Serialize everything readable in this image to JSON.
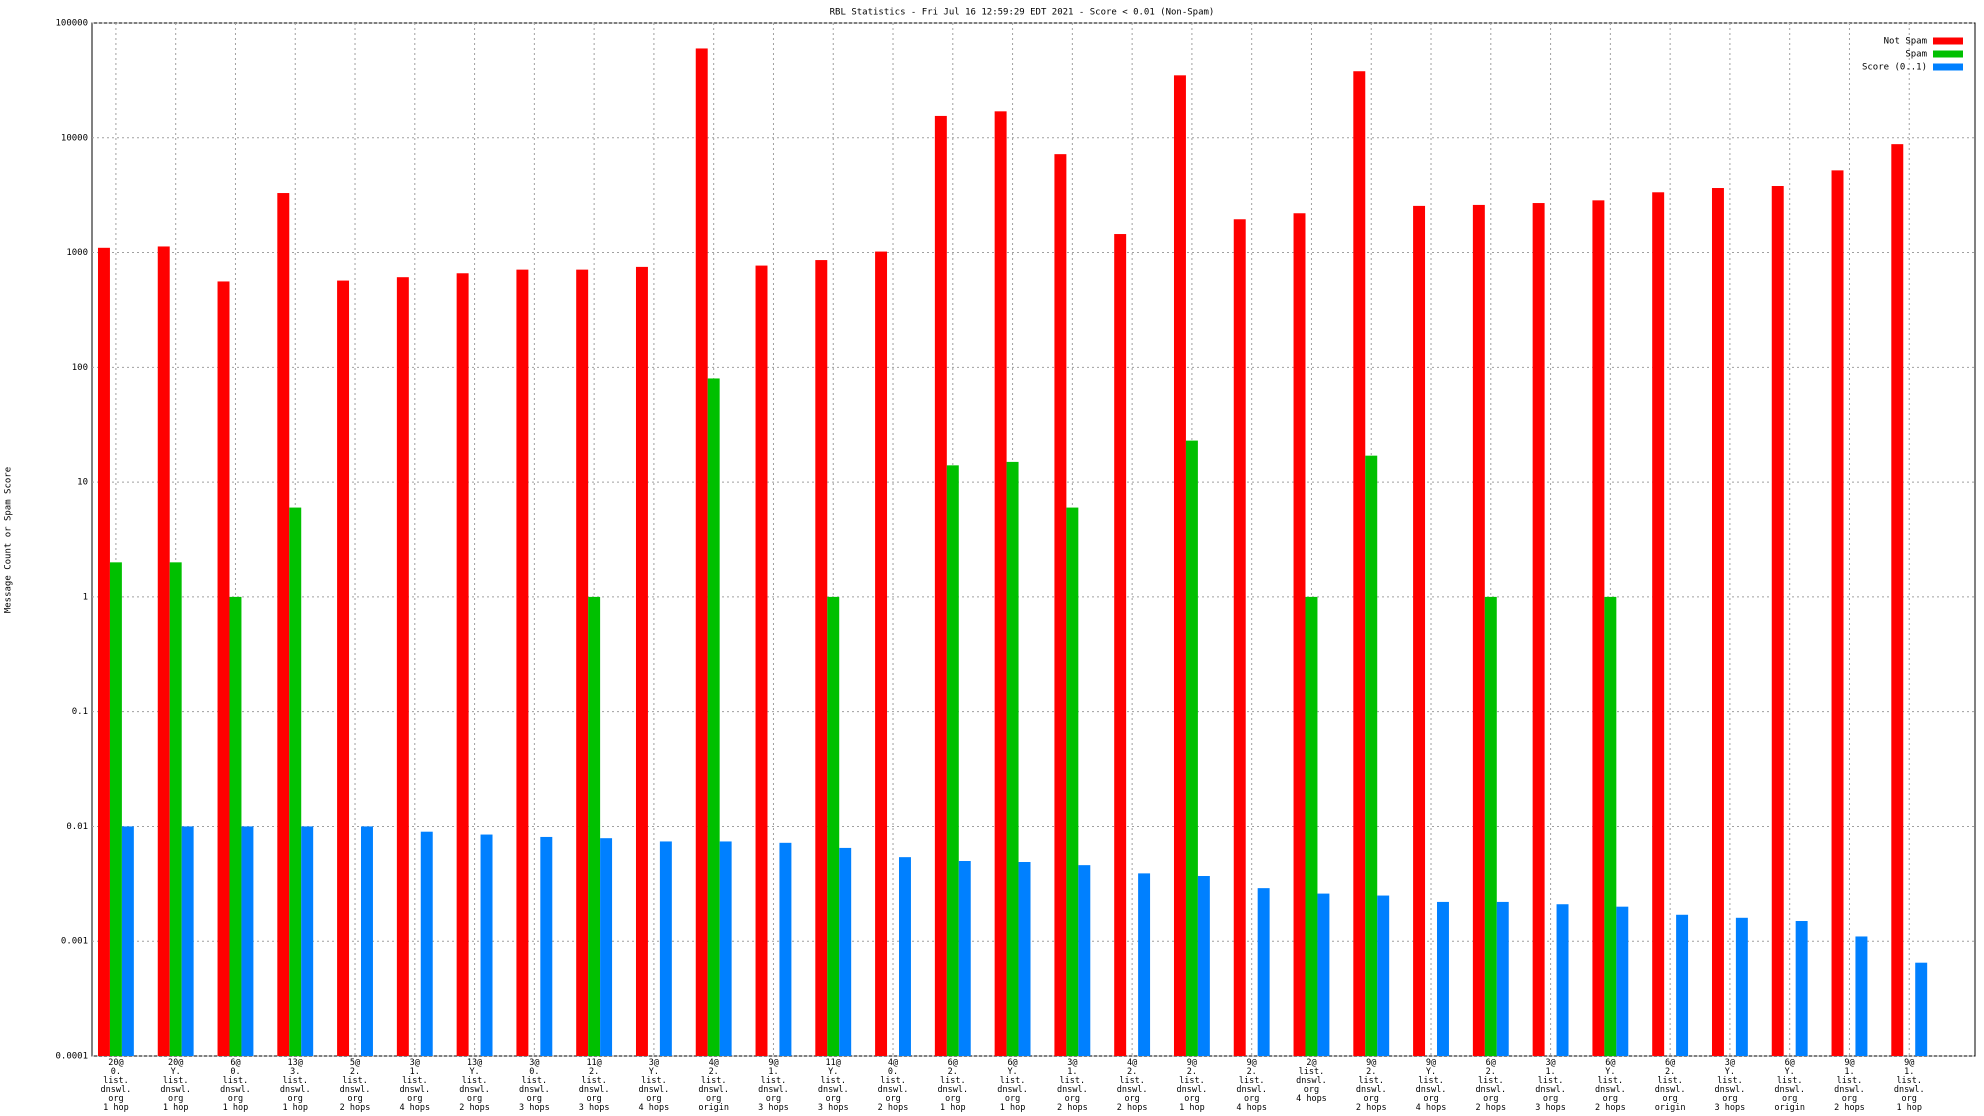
{
  "chart_data": {
    "type": "bar",
    "title": "RBL Statistics - Fri Jul 16 12:59:29 EDT 2021 - Score < 0.01 (Non-Spam)",
    "y_label": "Message Count or Spam Score",
    "log_y": true,
    "grid": true,
    "legend": "top-right",
    "categories": [
      "20@\n0.\nlist.\ndnswl.\norg\n1 hop",
      "20@\nY.\nlist.\ndnswl.\norg\n1 hop",
      "6@\n0.\nlist.\ndnswl.\norg\n1 hop",
      "13@\n3.\nlist.\ndnswl.\norg\n1 hop",
      "5@\n2.\nlist.\ndnswl.\norg\n2 hops",
      "3@\n1.\nlist.\ndnswl.\norg\n4 hops",
      "13@\nY.\nlist.\ndnswl.\norg\n2 hops",
      "3@\n0.\nlist.\ndnswl.\norg\n3 hops",
      "11@\n2.\nlist.\ndnswl.\norg\n3 hops",
      "3@\nY.\nlist.\ndnswl.\norg\n4 hops",
      "4@\n2.\nlist.\ndnswl.\norg\norigin",
      "9@\n1.\nlist.\ndnswl.\norg\n3 hops",
      "11@\nY.\nlist.\ndnswl.\norg\n3 hops",
      "4@\n0.\nlist.\ndnswl.\norg\n2 hops",
      "6@\n2.\nlist.\ndnswl.\norg\n1 hop",
      "6@\nY.\nlist.\ndnswl.\norg\n1 hop",
      "3@\n1.\nlist.\ndnswl.\norg\n2 hops",
      "4@\n2.\nlist.\ndnswl.\norg\n2 hops",
      "9@\n2.\nlist.\ndnswl.\norg\n1 hop",
      "9@\n2.\nlist.\ndnswl.\norg\n4 hops",
      "2@\nlist.\ndnswl.\norg\n4 hops",
      "9@\n2.\nlist.\ndnswl.\norg\n2 hops",
      "9@\nY.\nlist.\ndnswl.\norg\n4 hops",
      "6@\n2.\nlist.\ndnswl.\norg\n2 hops",
      "3@\n1.\nlist.\ndnswl.\norg\n3 hops",
      "6@\nY.\nlist.\ndnswl.\norg\n2 hops",
      "6@\n2.\nlist.\ndnswl.\norg\norigin",
      "3@\nY.\nlist.\ndnswl.\norg\n3 hops",
      "6@\nY.\nlist.\ndnswl.\norg\norigin",
      "9@\n1.\nlist.\ndnswl.\norg\n2 hops",
      "9@\n1.\nlist.\ndnswl.\norg\n1 hop"
    ],
    "series": [
      {
        "name": "Not Spam",
        "color": "#ff0000",
        "values": [
          1100,
          1130,
          560,
          3300,
          570,
          610,
          660,
          710,
          710,
          750,
          60000,
          770,
          860,
          1020,
          15500,
          17000,
          7200,
          1450,
          35000,
          1950,
          2200,
          38000,
          2550,
          2600,
          2700,
          2850,
          3350,
          3650,
          3800,
          5200,
          8800
        ]
      },
      {
        "name": "Spam",
        "color": "#00c000",
        "values": [
          2,
          2,
          1,
          6,
          null,
          null,
          null,
          null,
          1,
          null,
          80,
          null,
          1,
          null,
          14,
          15,
          6,
          null,
          23,
          null,
          1,
          17,
          null,
          1,
          null,
          1,
          null,
          null,
          null,
          null,
          null
        ]
      },
      {
        "name": "Score (0..1)",
        "color": "#0080ff",
        "values": [
          0.01,
          0.01,
          0.01,
          0.01,
          0.01,
          0.009,
          0.0085,
          0.0081,
          0.0079,
          0.0074,
          0.0074,
          0.0072,
          0.0065,
          0.0054,
          0.005,
          0.0049,
          0.0046,
          0.0039,
          0.0037,
          0.0029,
          0.0026,
          0.0025,
          0.0022,
          0.0022,
          0.0021,
          0.002,
          0.0017,
          0.0016,
          0.0015,
          0.0011,
          0.00065
        ]
      }
    ],
    "ylim": [
      0.0001,
      100000
    ],
    "yticks": [
      0.0001,
      0.001,
      0.01,
      0.1,
      1,
      10,
      100,
      1000,
      10000,
      100000
    ]
  }
}
